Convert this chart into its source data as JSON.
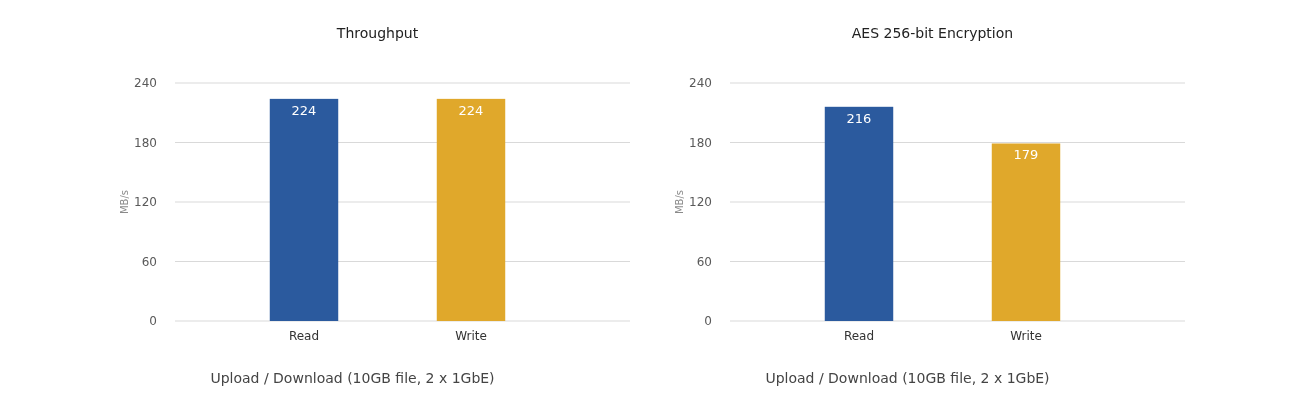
{
  "chart_data": [
    {
      "type": "bar",
      "title": "Throughput",
      "categories": [
        "Read",
        "Write"
      ],
      "values": [
        224,
        224
      ],
      "colors": [
        "#2b5a9e",
        "#e0a82b"
      ],
      "ylabel": "MB/s",
      "ylim": [
        0,
        240
      ],
      "yticks": [
        0,
        60,
        120,
        180,
        240
      ],
      "grid": "y",
      "data_labels": true,
      "annotations": [
        "Upload / Download (10GB file, 2 x 1GbE)"
      ]
    },
    {
      "type": "bar",
      "title": "AES 256-bit Encryption",
      "categories": [
        "Read",
        "Write"
      ],
      "values": [
        216,
        179
      ],
      "colors": [
        "#2b5a9e",
        "#e0a82b"
      ],
      "ylabel": "MB/s",
      "ylim": [
        0,
        240
      ],
      "yticks": [
        0,
        60,
        120,
        180,
        240
      ],
      "grid": "y",
      "data_labels": true,
      "annotations": [
        "Upload / Download (10GB file, 2 x 1GbE)"
      ]
    }
  ]
}
